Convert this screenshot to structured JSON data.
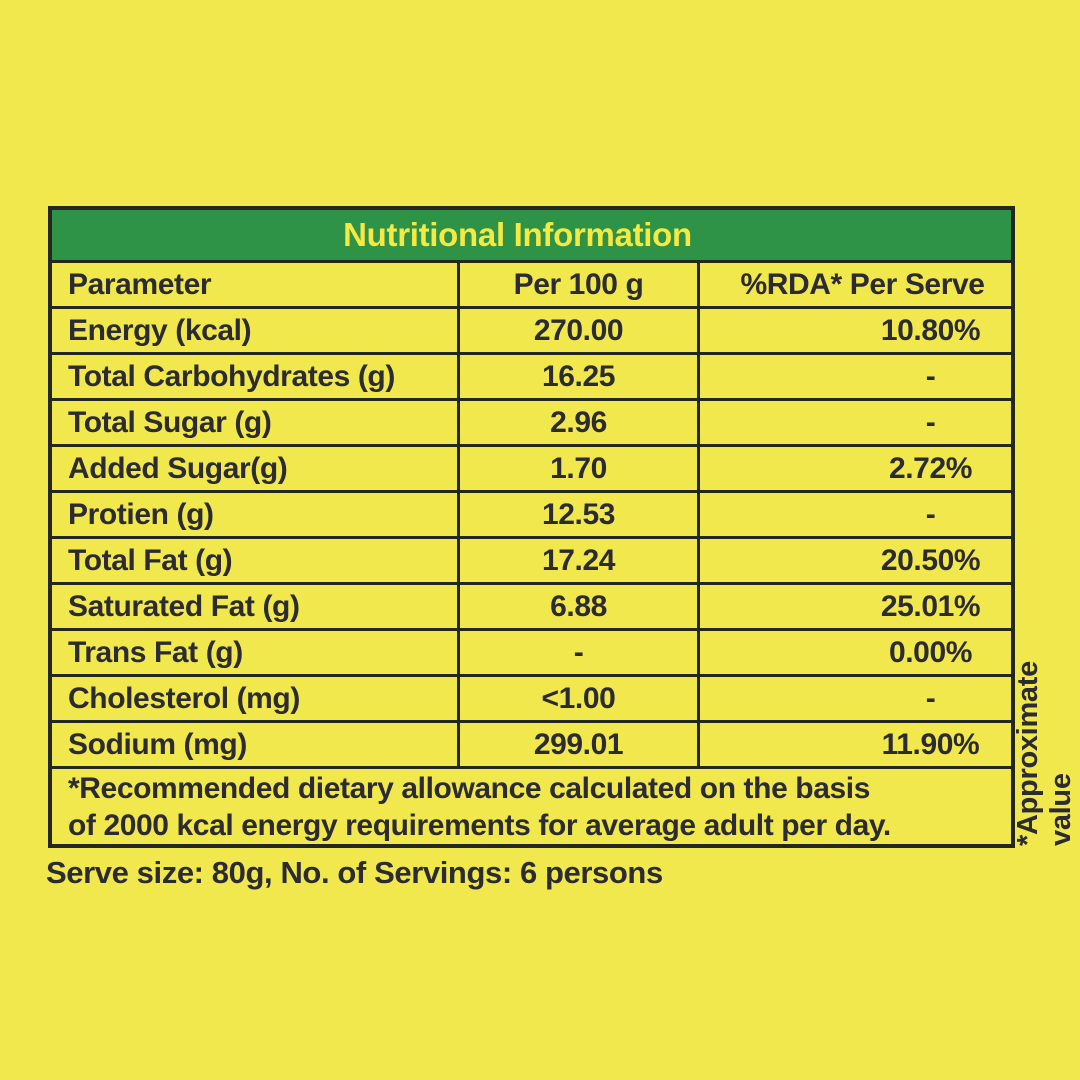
{
  "colors": {
    "background": "#F0E84D",
    "header_green": "#2E9347",
    "title_yellow": "#F5E942",
    "border": "#24271E",
    "text": "#2B2B31"
  },
  "table": {
    "title": "Nutritional Information",
    "columns": [
      "Parameter",
      "Per 100 g",
      "%RDA* Per Serve"
    ],
    "rows": [
      {
        "parameter": "Energy (kcal)",
        "per100g": "270.00",
        "rda": "10.80%"
      },
      {
        "parameter": "Total Carbohydrates (g)",
        "per100g": "16.25",
        "rda": "-"
      },
      {
        "parameter": "Total Sugar (g)",
        "per100g": "2.96",
        "rda": "-"
      },
      {
        "parameter": "Added Sugar(g)",
        "per100g": "1.70",
        "rda": "2.72%"
      },
      {
        "parameter": "Protien (g)",
        "per100g": "12.53",
        "rda": "-"
      },
      {
        "parameter": "Total Fat (g)",
        "per100g": "17.24",
        "rda": "20.50%"
      },
      {
        "parameter": "Saturated Fat (g)",
        "per100g": "6.88",
        "rda": "25.01%"
      },
      {
        "parameter": "Trans Fat (g)",
        "per100g": "-",
        "rda": "0.00%"
      },
      {
        "parameter": "Cholesterol (mg)",
        "per100g": "<1.00",
        "rda": "-"
      },
      {
        "parameter": "Sodium (mg)",
        "per100g": "299.01",
        "rda": "11.90%"
      }
    ],
    "footnote_line1": "*Recommended dietary allowance calculated on the basis",
    "footnote_line2": "of 2000 kcal energy requirements for average adult per day."
  },
  "serve_info": "Serve size: 80g, No. of Servings: 6 persons",
  "approx_note": "*Approximate value"
}
